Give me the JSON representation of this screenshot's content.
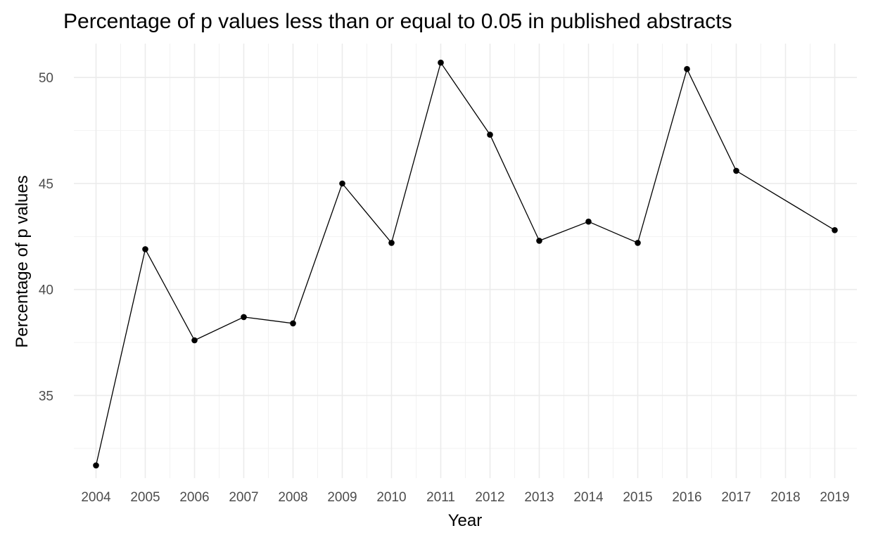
{
  "chart_data": {
    "type": "line",
    "title": "Percentage of p values less than or equal to 0.05 in published abstracts",
    "xlabel": "Year",
    "ylabel": "Percentage of p values",
    "x": [
      2004,
      2005,
      2006,
      2007,
      2008,
      2009,
      2010,
      2011,
      2012,
      2013,
      2014,
      2015,
      2016,
      2017,
      2019
    ],
    "x_ticks": [
      "2004",
      "2005",
      "2006",
      "2007",
      "2008",
      "2009",
      "2010",
      "2011",
      "2012",
      "2013",
      "2014",
      "2015",
      "2016",
      "2017",
      "2018",
      "2019"
    ],
    "y_ticks": [
      "35",
      "40",
      "45",
      "50"
    ],
    "series": [
      {
        "values": [
          31.7,
          41.9,
          37.6,
          38.7,
          38.4,
          45.0,
          42.2,
          50.7,
          47.3,
          42.3,
          43.2,
          42.2,
          50.4,
          45.6,
          42.8
        ]
      }
    ],
    "xlim": [
      2003.55,
      2019.45
    ],
    "ylim": [
      31.1,
      51.6
    ],
    "grid": true,
    "legend": "none",
    "line_color": "#000000"
  }
}
